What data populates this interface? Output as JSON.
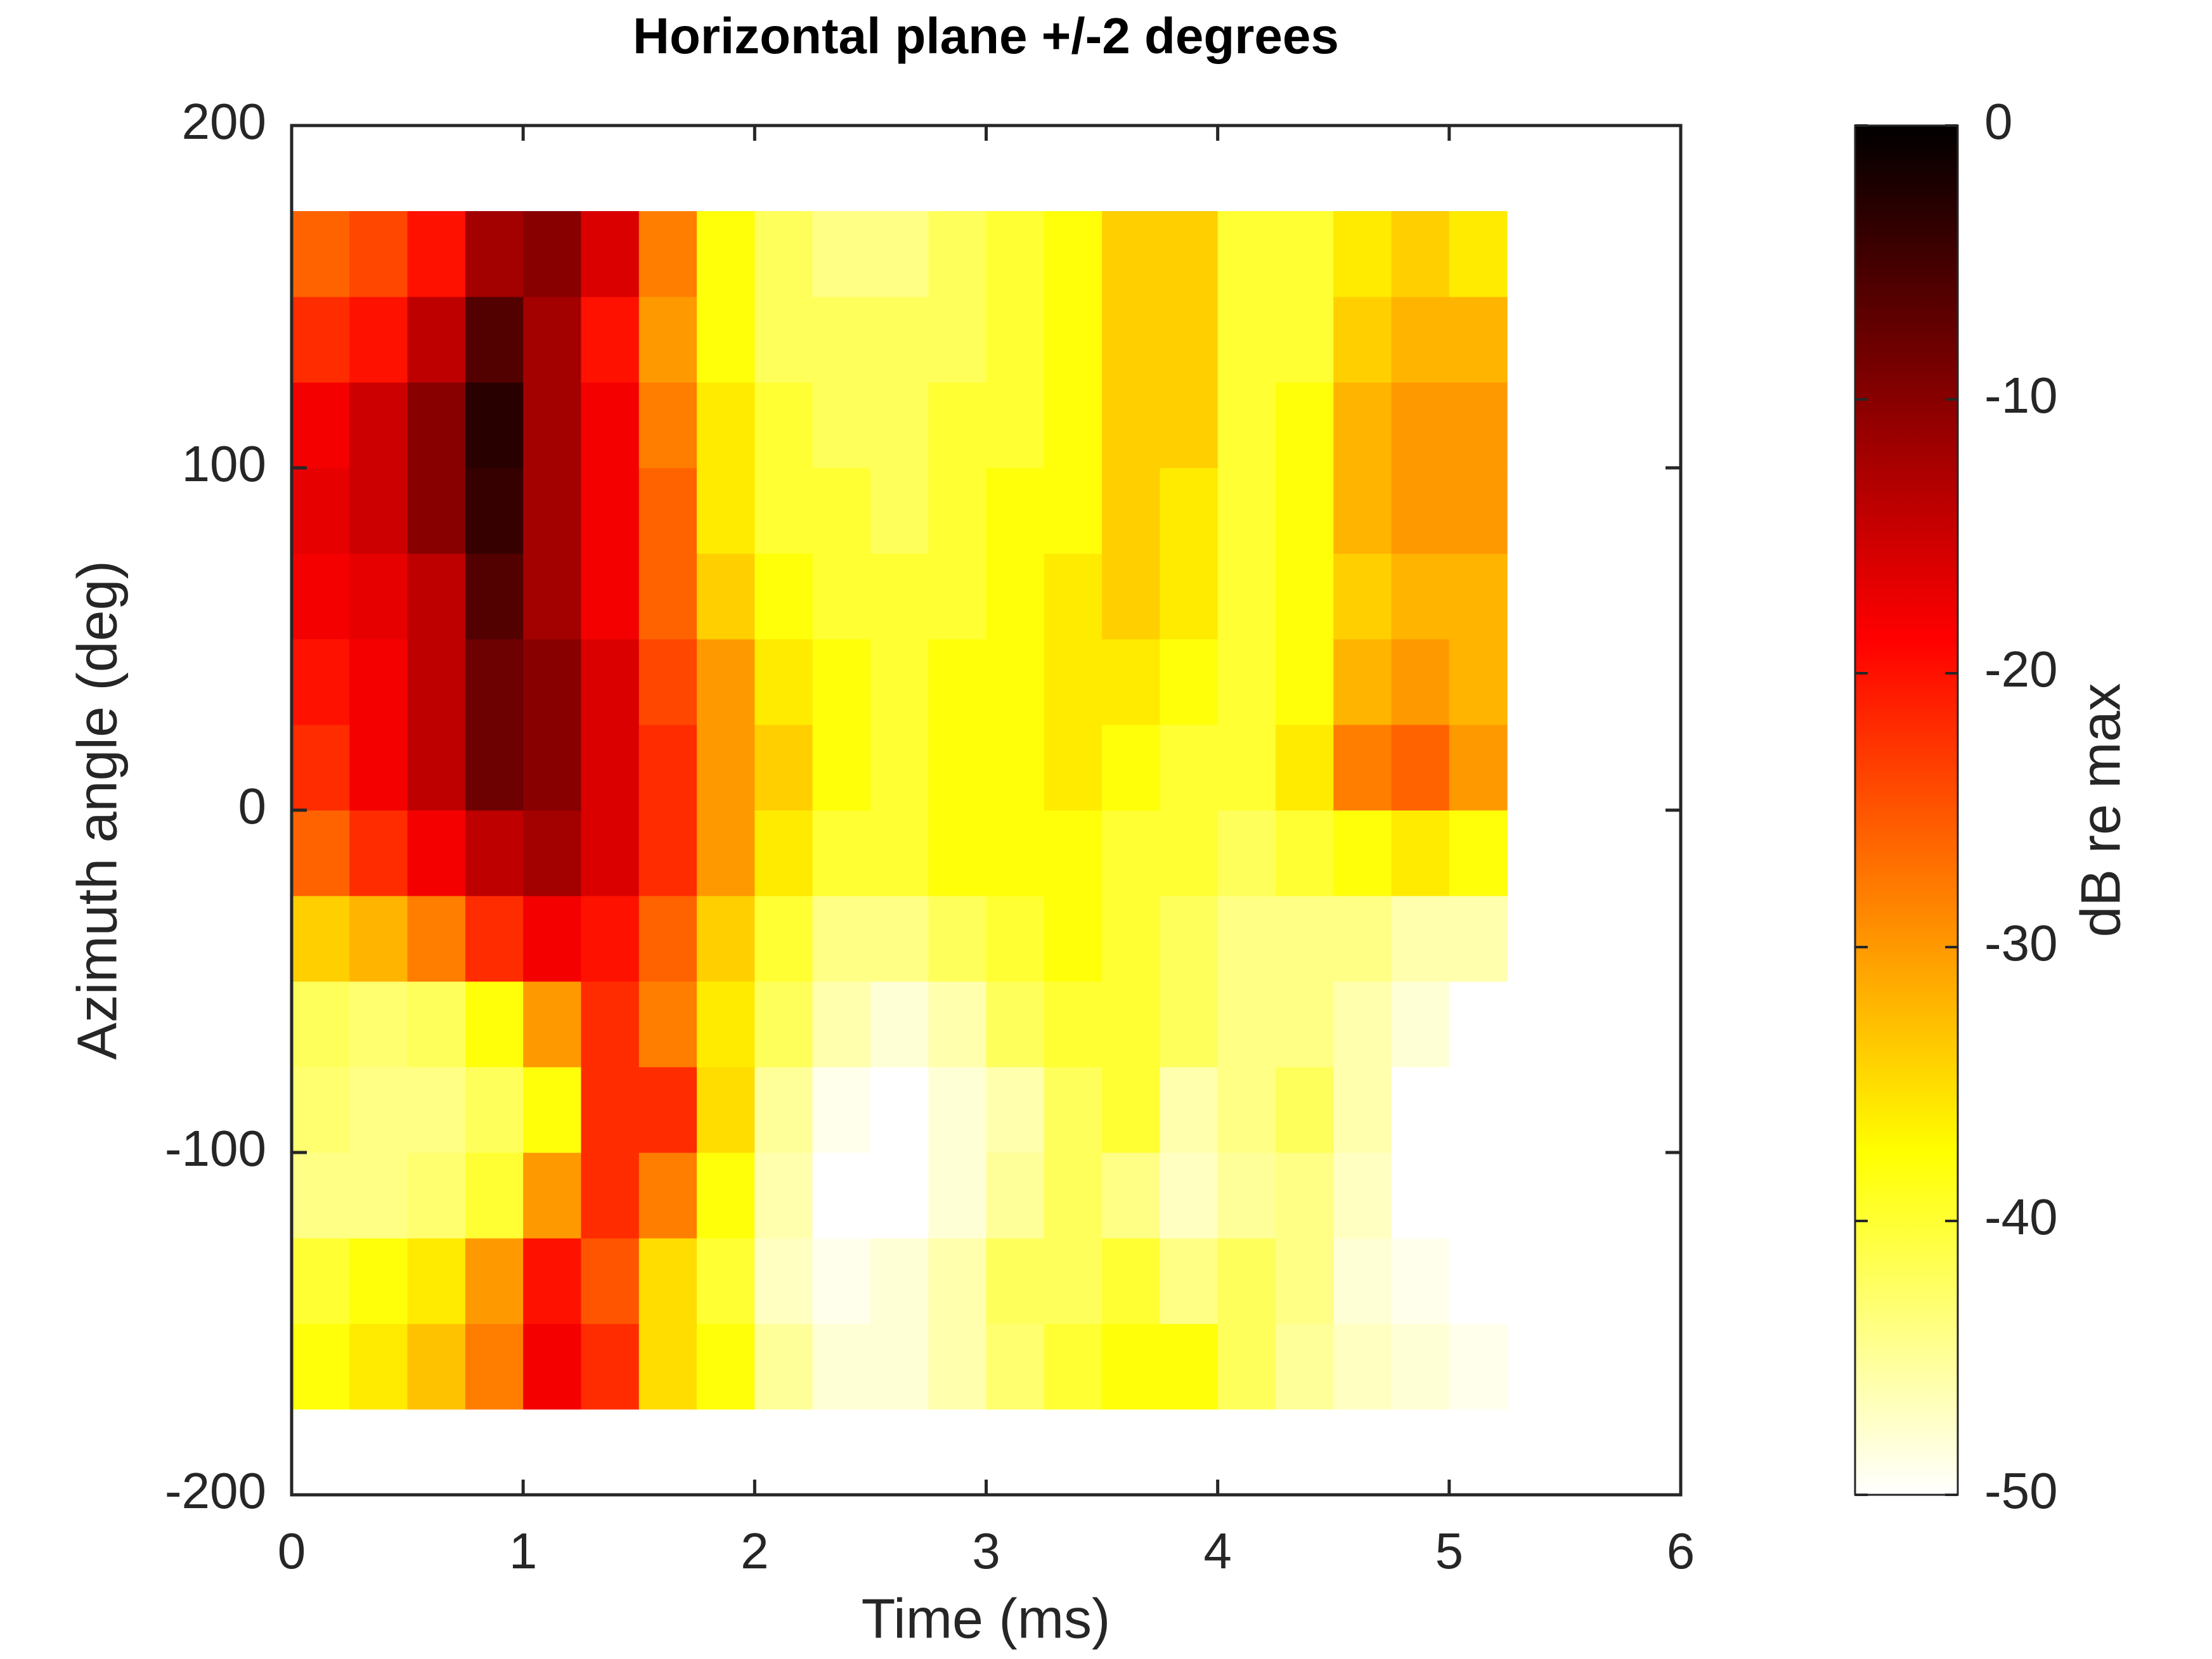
{
  "chart_data": {
    "type": "heatmap",
    "title": "Horizontal plane +/-2 degrees",
    "xlabel": "Time (ms)",
    "ylabel": "Azimuth angle (deg)",
    "colorbar_label": "dB re max",
    "colormap": "hot",
    "x": [
      0.125,
      0.375,
      0.625,
      0.875,
      1.125,
      1.375,
      1.625,
      1.875,
      2.125,
      2.375,
      2.625,
      2.875,
      3.125,
      3.375,
      3.625,
      3.875,
      4.125,
      4.375,
      4.625,
      4.875,
      5.125
    ],
    "y": [
      -162.5,
      -137.5,
      -112.5,
      -87.5,
      -62.5,
      -37.5,
      -12.5,
      12.5,
      37.5,
      62.5,
      87.5,
      112.5,
      137.5,
      162.5
    ],
    "values": [
      [
        -38,
        -36,
        -33,
        -28,
        -18,
        -22,
        -35,
        -38,
        -45,
        -48,
        -48,
        -46,
        -43,
        -40,
        -38,
        -38,
        -42,
        -45,
        -47,
        -48,
        -49
      ],
      [
        -40,
        -38,
        -36,
        -30,
        -20,
        -25,
        -35,
        -40,
        -47,
        -49,
        -48,
        -46,
        -42,
        -42,
        -40,
        -44,
        -42,
        -44,
        -48,
        -49,
        -50
      ],
      [
        -44,
        -44,
        -43,
        -40,
        -30,
        -22,
        -28,
        -38,
        -46,
        -50,
        -50,
        -48,
        -45,
        -42,
        -44,
        -47,
        -45,
        -44,
        -47,
        -50,
        -50
      ],
      [
        -43,
        -44,
        -44,
        -42,
        -38,
        -22,
        -22,
        -35,
        -45,
        -49,
        -50,
        -48,
        -46,
        -42,
        -40,
        -46,
        -44,
        -42,
        -46,
        -50,
        -50
      ],
      [
        -42,
        -43,
        -42,
        -38,
        -30,
        -22,
        -28,
        -36,
        -42,
        -46,
        -48,
        -46,
        -42,
        -40,
        -40,
        -42,
        -44,
        -44,
        -46,
        -48,
        -50
      ],
      [
        -34,
        -32,
        -28,
        -22,
        -18,
        -20,
        -26,
        -34,
        -40,
        -44,
        -44,
        -42,
        -40,
        -38,
        -40,
        -42,
        -44,
        -44,
        -44,
        -46,
        -46
      ],
      [
        -26,
        -22,
        -18,
        -14,
        -12,
        -16,
        -22,
        -30,
        -36,
        -40,
        -40,
        -38,
        -38,
        -38,
        -40,
        -40,
        -42,
        -40,
        -38,
        -36,
        -38
      ],
      [
        -22,
        -18,
        -14,
        -8,
        -10,
        -16,
        -22,
        -30,
        -34,
        -38,
        -40,
        -38,
        -38,
        -36,
        -38,
        -40,
        -40,
        -36,
        -28,
        -26,
        -30
      ],
      [
        -20,
        -18,
        -14,
        -8,
        -10,
        -16,
        -24,
        -30,
        -36,
        -38,
        -40,
        -38,
        -38,
        -36,
        -36,
        -38,
        -40,
        -38,
        -32,
        -30,
        -32
      ],
      [
        -18,
        -17,
        -14,
        -6,
        -12,
        -18,
        -26,
        -34,
        -38,
        -40,
        -40,
        -40,
        -38,
        -36,
        -34,
        -36,
        -40,
        -38,
        -34,
        -32,
        -32
      ],
      [
        -17,
        -15,
        -10,
        -4,
        -12,
        -18,
        -26,
        -36,
        -40,
        -40,
        -42,
        -40,
        -38,
        -38,
        -34,
        -36,
        -40,
        -38,
        -32,
        -30,
        -30
      ],
      [
        -18,
        -15,
        -10,
        -3,
        -12,
        -18,
        -28,
        -36,
        -40,
        -42,
        -42,
        -40,
        -40,
        -38,
        -34,
        -34,
        -40,
        -38,
        -32,
        -30,
        -30
      ],
      [
        -22,
        -20,
        -14,
        -6,
        -12,
        -20,
        -30,
        -38,
        -42,
        -42,
        -42,
        -42,
        -40,
        -38,
        -34,
        -34,
        -40,
        -40,
        -34,
        -32,
        -32
      ],
      [
        -26,
        -24,
        -20,
        -12,
        -10,
        -16,
        -28,
        -38,
        -42,
        -44,
        -44,
        -42,
        -40,
        -38,
        -34,
        -34,
        -40,
        -40,
        -36,
        -34,
        -36
      ]
    ],
    "xlim": [
      0,
      6
    ],
    "xticks": [
      0,
      1,
      2,
      3,
      4,
      5,
      6
    ],
    "ylim": [
      -200,
      200
    ],
    "yticks": [
      -200,
      -100,
      0,
      100,
      200
    ],
    "clim": [
      -50,
      0
    ],
    "cticks": [
      -50,
      -40,
      -30,
      -20,
      -10,
      0
    ]
  }
}
